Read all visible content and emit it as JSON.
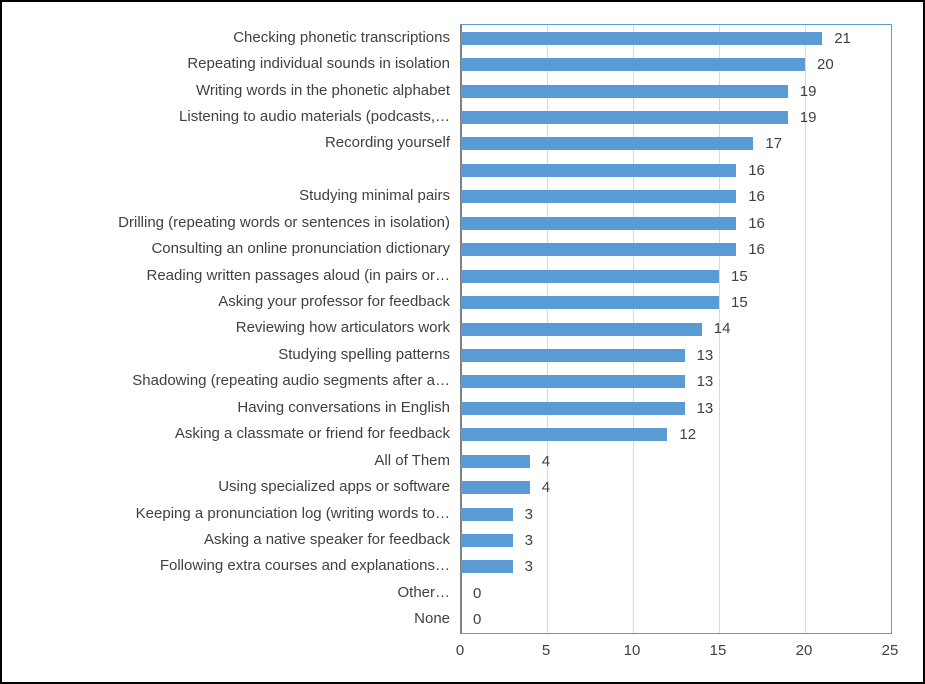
{
  "chart_data": {
    "type": "bar",
    "orientation": "horizontal",
    "title": "",
    "xlabel": "",
    "ylabel": "",
    "xlim": [
      0,
      25
    ],
    "x_ticks": [
      0,
      5,
      10,
      15,
      20,
      25
    ],
    "grid": "vertical-major",
    "legend": "none",
    "data_labels_shown": true,
    "categories": [
      "Checking phonetic transcriptions",
      "Repeating individual sounds in isolation",
      "Writing words in the phonetic alphabet",
      "Listening to audio materials (podcasts,…",
      "Recording yourself",
      "",
      "Studying minimal pairs",
      "Drilling (repeating words or sentences in isolation)",
      "Consulting an online pronunciation dictionary",
      "Reading written passages aloud (in pairs or…",
      "Asking your professor for feedback",
      "Reviewing how articulators work",
      "Studying spelling patterns",
      "Shadowing (repeating audio segments after a…",
      "Having conversations in English",
      "Asking a classmate or friend for feedback",
      "All of Them",
      "Using specialized apps or software",
      "Keeping a pronunciation log (writing words to…",
      "Asking a native speaker for feedback",
      "Following extra courses and explanations…",
      "Other…",
      "None"
    ],
    "values": [
      21,
      20,
      19,
      19,
      17,
      16,
      16,
      16,
      16,
      15,
      15,
      14,
      13,
      13,
      13,
      12,
      4,
      4,
      3,
      3,
      3,
      0,
      0
    ],
    "colors": {
      "bar": "#5B9BD5",
      "plot_border": "#5B9BD5",
      "gridline": "#D9D9D9",
      "axis_line": "#808080",
      "text": "#404040",
      "outer_border": "#000000"
    }
  }
}
